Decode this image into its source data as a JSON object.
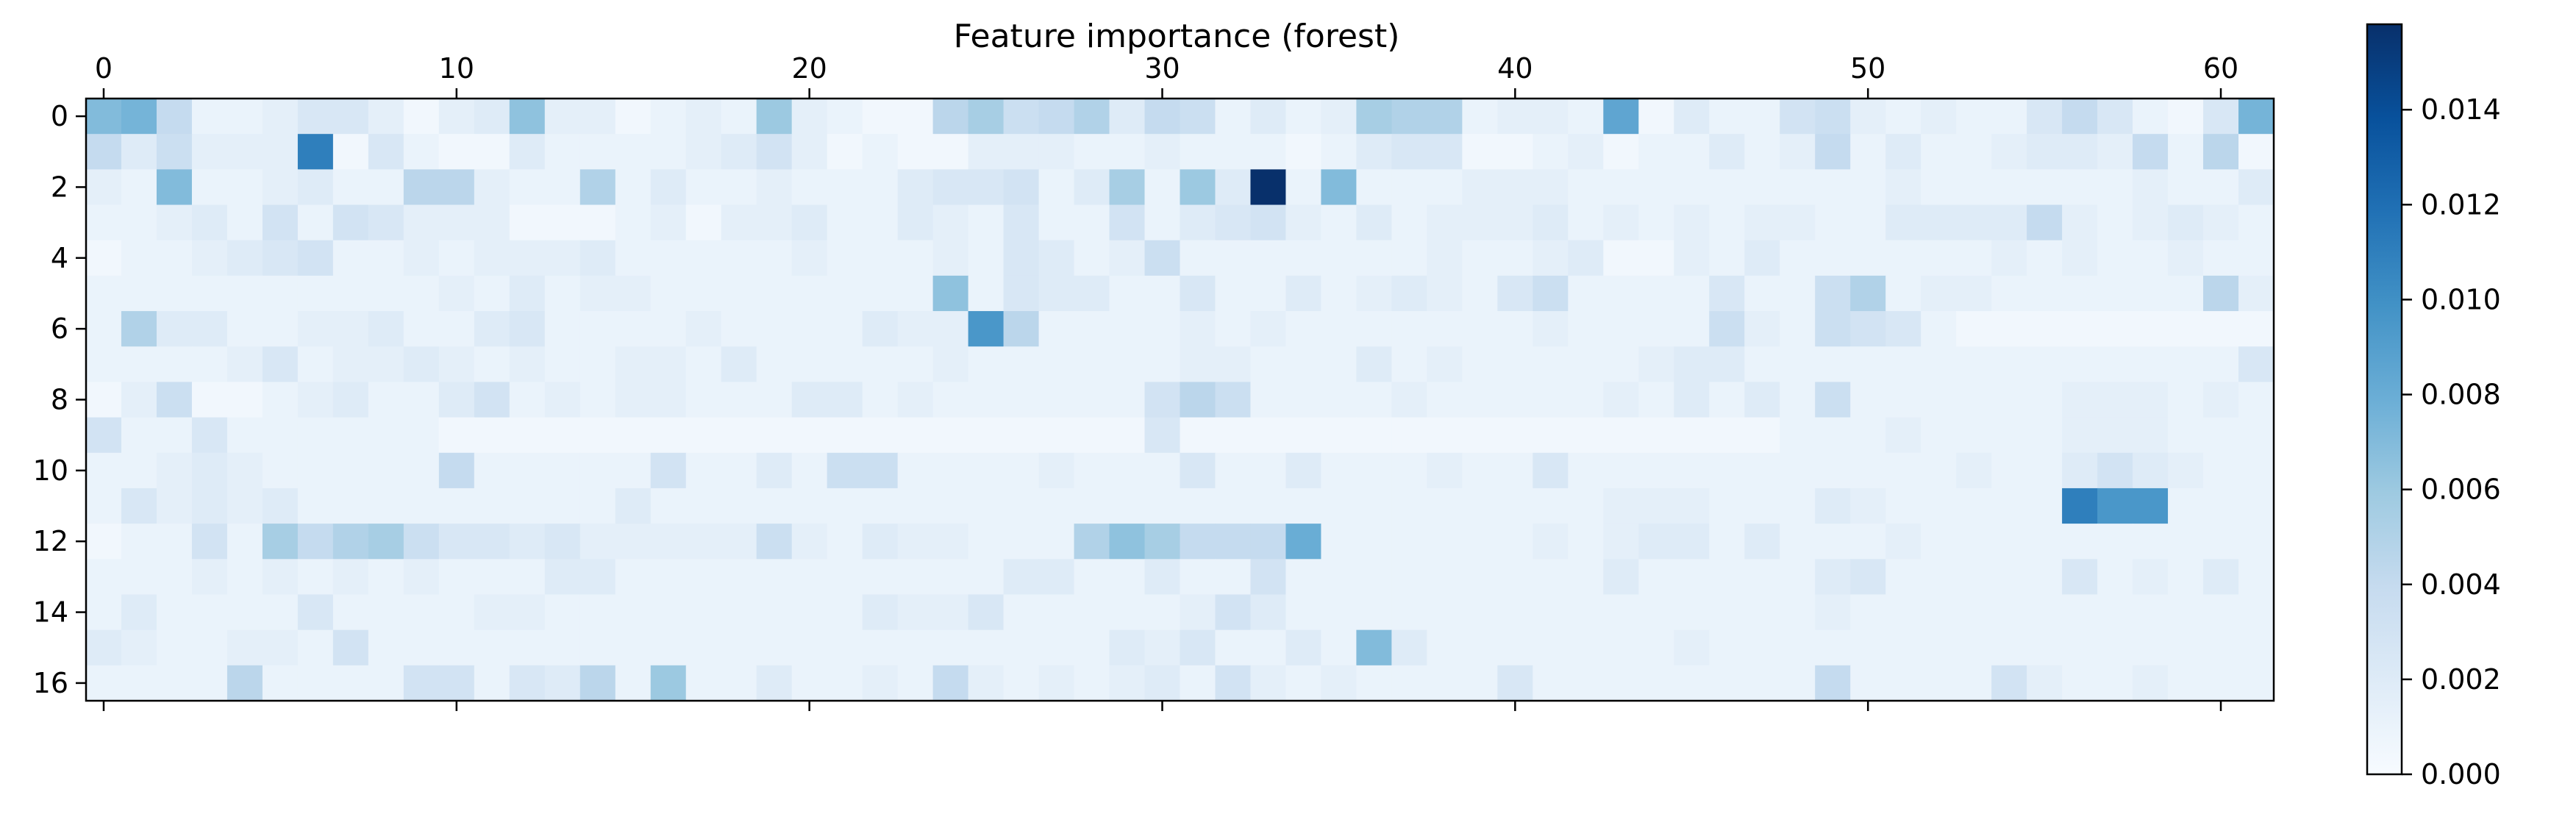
{
  "chart_data": {
    "type": "heatmap",
    "title": "Feature importance (forest)",
    "n_cols": 62,
    "n_rows": 17,
    "x_ticks": [
      0,
      10,
      20,
      30,
      40,
      50,
      60
    ],
    "y_ticks": [
      0,
      2,
      4,
      6,
      8,
      10,
      12,
      14,
      16
    ],
    "colormap": "Blues",
    "colormap_stops": [
      "#f7fbff",
      "#deebf7",
      "#c6dbef",
      "#9ecae1",
      "#6baed6",
      "#4292c6",
      "#2171b5",
      "#08519c",
      "#08306b"
    ],
    "colorbar": {
      "min": 0.0,
      "max": 0.0158,
      "ticks": [
        0.0,
        0.002,
        0.004,
        0.006,
        0.008,
        0.01,
        0.012,
        0.014
      ],
      "tick_labels": [
        "0.000",
        "0.002",
        "0.004",
        "0.006",
        "0.008",
        "0.010",
        "0.012",
        "0.014"
      ]
    },
    "values": [
      [
        0.007,
        0.0075,
        0.004,
        0.001,
        0.001,
        0.0015,
        0.0025,
        0.0025,
        0.0015,
        0.0005,
        0.0015,
        0.002,
        0.0065,
        0.0015,
        0.0015,
        0.0005,
        0.001,
        0.0015,
        0.001,
        0.006,
        0.0015,
        0.001,
        0.0005,
        0.0005,
        0.0045,
        0.0055,
        0.0035,
        0.004,
        0.005,
        0.002,
        0.004,
        0.0035,
        0.001,
        0.002,
        0.001,
        0.0015,
        0.0055,
        0.005,
        0.005,
        0.001,
        0.0015,
        0.0015,
        0.001,
        0.0085,
        0.0005,
        0.002,
        0.001,
        0.001,
        0.003,
        0.0035,
        0.0015,
        0.001,
        0.0015,
        0.001,
        0.001,
        0.0025,
        0.004,
        0.0025,
        0.001,
        0.0005,
        0.0025,
        0.0075
      ],
      [
        0.004,
        0.002,
        0.0035,
        0.0015,
        0.0015,
        0.0015,
        0.011,
        0.0005,
        0.0025,
        0.001,
        0.0005,
        0.0005,
        0.002,
        0.001,
        0.001,
        0.001,
        0.001,
        0.0015,
        0.002,
        0.003,
        0.0015,
        0.0005,
        0.001,
        0.0005,
        0.0005,
        0.0015,
        0.0015,
        0.0015,
        0.001,
        0.001,
        0.0015,
        0.001,
        0.001,
        0.001,
        0.0005,
        0.001,
        0.002,
        0.0025,
        0.0025,
        0.0005,
        0.0005,
        0.001,
        0.0015,
        0.0005,
        0.001,
        0.001,
        0.002,
        0.001,
        0.0015,
        0.004,
        0.001,
        0.002,
        0.001,
        0.001,
        0.0015,
        0.002,
        0.002,
        0.0015,
        0.004,
        0.001,
        0.0045,
        0.0005
      ],
      [
        0.0015,
        0.001,
        0.007,
        0.001,
        0.001,
        0.0015,
        0.002,
        0.001,
        0.001,
        0.0045,
        0.0045,
        0.0015,
        0.001,
        0.001,
        0.005,
        0.001,
        0.002,
        0.001,
        0.001,
        0.0015,
        0.001,
        0.001,
        0.001,
        0.002,
        0.0025,
        0.0025,
        0.003,
        0.001,
        0.002,
        0.0055,
        0.001,
        0.006,
        0.002,
        0.0158,
        0.001,
        0.007,
        0.001,
        0.001,
        0.001,
        0.0015,
        0.0015,
        0.0015,
        0.001,
        0.001,
        0.001,
        0.001,
        0.001,
        0.001,
        0.001,
        0.001,
        0.001,
        0.0015,
        0.001,
        0.001,
        0.001,
        0.001,
        0.001,
        0.001,
        0.0015,
        0.001,
        0.001,
        0.002
      ],
      [
        0.001,
        0.001,
        0.0015,
        0.002,
        0.001,
        0.003,
        0.001,
        0.003,
        0.0025,
        0.0015,
        0.0015,
        0.0015,
        0.0005,
        0.0005,
        0.0005,
        0.001,
        0.0015,
        0.0005,
        0.0015,
        0.0015,
        0.002,
        0.001,
        0.001,
        0.002,
        0.0015,
        0.001,
        0.0025,
        0.001,
        0.001,
        0.003,
        0.001,
        0.002,
        0.0025,
        0.003,
        0.0015,
        0.001,
        0.002,
        0.001,
        0.0015,
        0.0015,
        0.0015,
        0.002,
        0.001,
        0.0015,
        0.001,
        0.0015,
        0.001,
        0.0015,
        0.0015,
        0.001,
        0.001,
        0.002,
        0.002,
        0.002,
        0.002,
        0.004,
        0.0015,
        0.001,
        0.0015,
        0.002,
        0.0015,
        0.001
      ],
      [
        0.0005,
        0.001,
        0.001,
        0.0015,
        0.002,
        0.0025,
        0.003,
        0.001,
        0.001,
        0.0015,
        0.001,
        0.0015,
        0.0015,
        0.0015,
        0.002,
        0.001,
        0.001,
        0.001,
        0.001,
        0.001,
        0.0015,
        0.001,
        0.001,
        0.001,
        0.0015,
        0.001,
        0.0025,
        0.002,
        0.001,
        0.0015,
        0.0035,
        0.001,
        0.001,
        0.001,
        0.001,
        0.001,
        0.001,
        0.001,
        0.0015,
        0.001,
        0.001,
        0.0015,
        0.002,
        0.0005,
        0.0005,
        0.0015,
        0.001,
        0.002,
        0.001,
        0.001,
        0.001,
        0.001,
        0.001,
        0.001,
        0.0015,
        0.001,
        0.0015,
        0.001,
        0.001,
        0.0015,
        0.001,
        0.001
      ],
      [
        0.001,
        0.001,
        0.001,
        0.001,
        0.001,
        0.001,
        0.001,
        0.001,
        0.001,
        0.001,
        0.0015,
        0.001,
        0.002,
        0.001,
        0.0015,
        0.0015,
        0.001,
        0.001,
        0.001,
        0.001,
        0.001,
        0.001,
        0.001,
        0.001,
        0.0065,
        0.001,
        0.0025,
        0.002,
        0.002,
        0.001,
        0.001,
        0.0025,
        0.001,
        0.001,
        0.002,
        0.001,
        0.0015,
        0.002,
        0.0015,
        0.001,
        0.0025,
        0.0035,
        0.001,
        0.001,
        0.001,
        0.001,
        0.0025,
        0.001,
        0.001,
        0.0035,
        0.005,
        0.001,
        0.0015,
        0.0015,
        0.001,
        0.001,
        0.001,
        0.001,
        0.001,
        0.001,
        0.0045,
        0.0015
      ],
      [
        0.001,
        0.005,
        0.002,
        0.002,
        0.001,
        0.001,
        0.0015,
        0.0015,
        0.002,
        0.001,
        0.001,
        0.002,
        0.0025,
        0.001,
        0.001,
        0.001,
        0.001,
        0.0015,
        0.001,
        0.001,
        0.001,
        0.001,
        0.002,
        0.0015,
        0.0015,
        0.0095,
        0.0045,
        0.001,
        0.001,
        0.001,
        0.001,
        0.0015,
        0.001,
        0.0015,
        0.001,
        0.001,
        0.001,
        0.001,
        0.001,
        0.001,
        0.001,
        0.0015,
        0.001,
        0.001,
        0.001,
        0.001,
        0.0035,
        0.0015,
        0.001,
        0.0035,
        0.003,
        0.0025,
        0.001,
        0.0005,
        0.0005,
        0.0005,
        0.0005,
        0.0005,
        0.0005,
        0.0005,
        0.0005,
        0.0005
      ],
      [
        0.001,
        0.001,
        0.001,
        0.001,
        0.0015,
        0.0025,
        0.001,
        0.0015,
        0.0015,
        0.002,
        0.0015,
        0.001,
        0.0015,
        0.001,
        0.001,
        0.0015,
        0.0015,
        0.001,
        0.002,
        0.001,
        0.001,
        0.001,
        0.001,
        0.001,
        0.0015,
        0.001,
        0.001,
        0.001,
        0.001,
        0.001,
        0.001,
        0.0015,
        0.0015,
        0.001,
        0.001,
        0.001,
        0.002,
        0.001,
        0.0015,
        0.001,
        0.001,
        0.001,
        0.001,
        0.001,
        0.0015,
        0.002,
        0.002,
        0.001,
        0.001,
        0.001,
        0.001,
        0.001,
        0.001,
        0.001,
        0.001,
        0.001,
        0.001,
        0.001,
        0.001,
        0.001,
        0.001,
        0.0025
      ],
      [
        0.0005,
        0.0015,
        0.0035,
        0.0005,
        0.0005,
        0.001,
        0.0015,
        0.002,
        0.001,
        0.001,
        0.002,
        0.003,
        0.001,
        0.0015,
        0.001,
        0.0015,
        0.0015,
        0.001,
        0.001,
        0.001,
        0.002,
        0.002,
        0.001,
        0.0015,
        0.001,
        0.001,
        0.001,
        0.001,
        0.001,
        0.001,
        0.003,
        0.0045,
        0.0035,
        0.001,
        0.001,
        0.001,
        0.001,
        0.0015,
        0.001,
        0.001,
        0.001,
        0.001,
        0.001,
        0.0015,
        0.001,
        0.002,
        0.001,
        0.002,
        0.001,
        0.0035,
        0.001,
        0.001,
        0.001,
        0.001,
        0.001,
        0.001,
        0.0015,
        0.0015,
        0.0015,
        0.001,
        0.0015,
        0.001
      ],
      [
        0.003,
        0.001,
        0.001,
        0.0025,
        0.001,
        0.001,
        0.001,
        0.001,
        0.001,
        0.001,
        0.0005,
        0.0005,
        0.0005,
        0.0005,
        0.0005,
        0.0005,
        0.0005,
        0.0005,
        0.0005,
        0.0005,
        0.0005,
        0.0005,
        0.0005,
        0.0005,
        0.0005,
        0.0005,
        0.0005,
        0.0005,
        0.0005,
        0.0005,
        0.0025,
        0.0005,
        0.0005,
        0.0005,
        0.0005,
        0.0005,
        0.0005,
        0.0005,
        0.0005,
        0.0005,
        0.0005,
        0.0005,
        0.0005,
        0.0005,
        0.0005,
        0.0005,
        0.0005,
        0.0005,
        0.001,
        0.001,
        0.001,
        0.0015,
        0.001,
        0.001,
        0.001,
        0.001,
        0.0015,
        0.0015,
        0.0015,
        0.001,
        0.001,
        0.001
      ],
      [
        0.001,
        0.001,
        0.0015,
        0.002,
        0.0015,
        0.001,
        0.001,
        0.001,
        0.001,
        0.001,
        0.004,
        0.001,
        0.001,
        0.001,
        0.001,
        0.001,
        0.003,
        0.001,
        0.001,
        0.002,
        0.001,
        0.0035,
        0.0035,
        0.001,
        0.001,
        0.001,
        0.001,
        0.0015,
        0.001,
        0.001,
        0.001,
        0.0025,
        0.001,
        0.001,
        0.002,
        0.001,
        0.001,
        0.001,
        0.0015,
        0.001,
        0.001,
        0.0025,
        0.001,
        0.001,
        0.001,
        0.001,
        0.001,
        0.001,
        0.001,
        0.001,
        0.001,
        0.001,
        0.001,
        0.0015,
        0.001,
        0.001,
        0.002,
        0.003,
        0.002,
        0.0015,
        0.001,
        0.001
      ],
      [
        0.001,
        0.0025,
        0.0015,
        0.002,
        0.0015,
        0.002,
        0.001,
        0.001,
        0.001,
        0.001,
        0.001,
        0.001,
        0.001,
        0.001,
        0.001,
        0.002,
        0.001,
        0.001,
        0.001,
        0.001,
        0.001,
        0.001,
        0.001,
        0.001,
        0.001,
        0.001,
        0.001,
        0.001,
        0.001,
        0.001,
        0.001,
        0.001,
        0.001,
        0.001,
        0.001,
        0.001,
        0.001,
        0.001,
        0.001,
        0.001,
        0.001,
        0.001,
        0.001,
        0.0015,
        0.0015,
        0.0015,
        0.001,
        0.001,
        0.001,
        0.002,
        0.0015,
        0.001,
        0.001,
        0.001,
        0.001,
        0.001,
        0.011,
        0.0095,
        0.0095,
        0.001,
        0.001,
        0.001
      ],
      [
        0.0005,
        0.001,
        0.001,
        0.003,
        0.001,
        0.0055,
        0.004,
        0.005,
        0.0055,
        0.0035,
        0.0025,
        0.0025,
        0.002,
        0.0025,
        0.0015,
        0.0015,
        0.0015,
        0.0015,
        0.0015,
        0.0035,
        0.0015,
        0.001,
        0.002,
        0.0015,
        0.0015,
        0.001,
        0.001,
        0.001,
        0.005,
        0.0065,
        0.0055,
        0.004,
        0.004,
        0.004,
        0.008,
        0.001,
        0.001,
        0.001,
        0.001,
        0.001,
        0.001,
        0.0015,
        0.001,
        0.0015,
        0.002,
        0.002,
        0.001,
        0.002,
        0.001,
        0.001,
        0.001,
        0.0015,
        0.001,
        0.001,
        0.001,
        0.001,
        0.001,
        0.001,
        0.001,
        0.001,
        0.001,
        0.001
      ],
      [
        0.001,
        0.001,
        0.001,
        0.0015,
        0.001,
        0.0015,
        0.001,
        0.0015,
        0.001,
        0.0015,
        0.001,
        0.001,
        0.001,
        0.002,
        0.002,
        0.001,
        0.001,
        0.001,
        0.001,
        0.001,
        0.001,
        0.001,
        0.001,
        0.001,
        0.001,
        0.001,
        0.002,
        0.002,
        0.001,
        0.001,
        0.002,
        0.001,
        0.001,
        0.003,
        0.001,
        0.001,
        0.001,
        0.001,
        0.001,
        0.001,
        0.001,
        0.001,
        0.001,
        0.002,
        0.001,
        0.001,
        0.001,
        0.001,
        0.001,
        0.002,
        0.0025,
        0.001,
        0.001,
        0.001,
        0.001,
        0.001,
        0.0025,
        0.001,
        0.0015,
        0.001,
        0.002,
        0.001
      ],
      [
        0.001,
        0.002,
        0.001,
        0.001,
        0.001,
        0.001,
        0.0025,
        0.001,
        0.001,
        0.001,
        0.001,
        0.0015,
        0.0015,
        0.001,
        0.001,
        0.001,
        0.001,
        0.001,
        0.001,
        0.001,
        0.001,
        0.001,
        0.002,
        0.0015,
        0.0015,
        0.0025,
        0.001,
        0.001,
        0.001,
        0.001,
        0.001,
        0.0015,
        0.003,
        0.002,
        0.001,
        0.001,
        0.001,
        0.001,
        0.001,
        0.001,
        0.001,
        0.001,
        0.001,
        0.001,
        0.001,
        0.001,
        0.001,
        0.001,
        0.001,
        0.0015,
        0.001,
        0.001,
        0.001,
        0.001,
        0.001,
        0.001,
        0.001,
        0.001,
        0.001,
        0.001,
        0.001,
        0.001
      ],
      [
        0.002,
        0.0015,
        0.001,
        0.001,
        0.0015,
        0.0015,
        0.001,
        0.003,
        0.001,
        0.001,
        0.001,
        0.001,
        0.001,
        0.001,
        0.001,
        0.001,
        0.001,
        0.001,
        0.001,
        0.001,
        0.001,
        0.001,
        0.001,
        0.001,
        0.001,
        0.001,
        0.001,
        0.001,
        0.001,
        0.002,
        0.0015,
        0.0025,
        0.001,
        0.001,
        0.002,
        0.001,
        0.007,
        0.002,
        0.001,
        0.001,
        0.001,
        0.001,
        0.001,
        0.001,
        0.001,
        0.0015,
        0.001,
        0.001,
        0.001,
        0.001,
        0.001,
        0.001,
        0.001,
        0.001,
        0.001,
        0.001,
        0.001,
        0.001,
        0.001,
        0.001,
        0.001,
        0.001
      ],
      [
        0.001,
        0.001,
        0.001,
        0.001,
        0.0045,
        0.001,
        0.001,
        0.001,
        0.001,
        0.003,
        0.003,
        0.001,
        0.0025,
        0.002,
        0.0045,
        0.001,
        0.006,
        0.001,
        0.001,
        0.002,
        0.001,
        0.001,
        0.0015,
        0.001,
        0.004,
        0.0015,
        0.001,
        0.0015,
        0.001,
        0.0015,
        0.002,
        0.001,
        0.003,
        0.0015,
        0.001,
        0.0015,
        0.001,
        0.001,
        0.001,
        0.001,
        0.0025,
        0.001,
        0.001,
        0.001,
        0.001,
        0.001,
        0.001,
        0.001,
        0.001,
        0.004,
        0.001,
        0.001,
        0.001,
        0.001,
        0.003,
        0.0015,
        0.001,
        0.001,
        0.0015,
        0.001,
        0.001,
        0.001
      ]
    ]
  }
}
